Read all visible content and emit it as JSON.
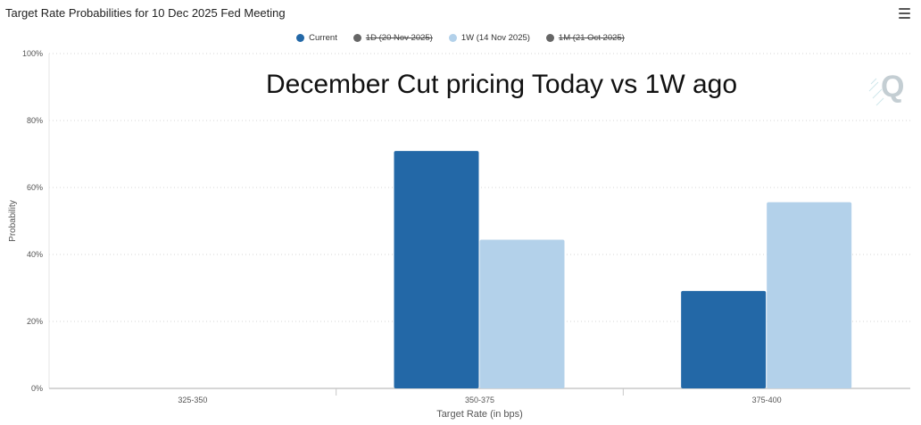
{
  "header": {
    "title": "Target Rate Probabilities for 10 Dec 2025 Fed Meeting",
    "menu_icon": "hamburger-menu-icon"
  },
  "annotation": "December Cut pricing Today vs 1W ago",
  "colors": {
    "current": "#2368a7",
    "one_week": "#b3d1ea",
    "hidden_series": "#666666",
    "grid": "#d6d6d6",
    "axis": "#c8c8c8"
  },
  "chart_data": {
    "type": "bar",
    "title": "Target Rate Probabilities for 10 Dec 2025 Fed Meeting",
    "xlabel": "Target Rate (in bps)",
    "ylabel": "Probability",
    "categories": [
      "325-350",
      "350-375",
      "375-400"
    ],
    "ylim": [
      0,
      100
    ],
    "yticks": [
      "0%",
      "20%",
      "40%",
      "60%",
      "80%",
      "100%"
    ],
    "grid": true,
    "legend_position": "top-center",
    "legend": [
      {
        "name": "Current",
        "color": "#2368a7",
        "hidden": false
      },
      {
        "name": "1D (20 Nov 2025)",
        "color": "#666666",
        "hidden": true
      },
      {
        "name": "1W (14 Nov 2025)",
        "color": "#b3d1ea",
        "hidden": false
      },
      {
        "name": "1M (21 Oct 2025)",
        "color": "#666666",
        "hidden": true
      }
    ],
    "series": [
      {
        "name": "Current",
        "color": "#2368a7",
        "values": [
          0,
          70.9,
          29.1
        ]
      },
      {
        "name": "1W (14 Nov 2025)",
        "color": "#b3d1ea",
        "values": [
          0,
          44.4,
          55.6
        ]
      }
    ],
    "annotation": "December Cut pricing Today vs 1W ago"
  }
}
